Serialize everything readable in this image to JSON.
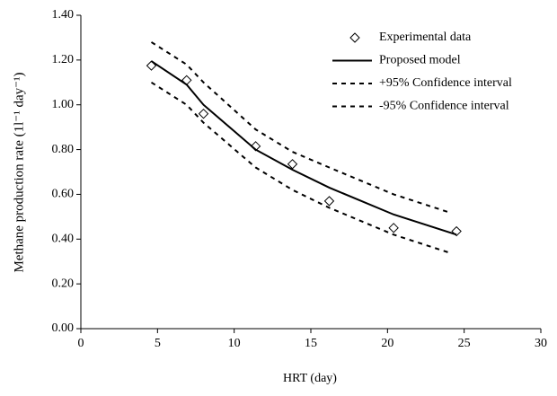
{
  "chart_data": {
    "type": "scatter-line",
    "x_label": "HRT (day)",
    "y_label": "Methane production rate (1l⁻¹ day⁻¹)",
    "xlim": [
      0,
      30
    ],
    "xticks": [
      0,
      5,
      10,
      15,
      20,
      25,
      30
    ],
    "ylim": [
      0,
      1.4
    ],
    "yticks": [
      {
        "value": 0,
        "label": "0.00"
      },
      {
        "value": 0.2,
        "label": "0.20"
      },
      {
        "value": 0.4,
        "label": "0.40"
      },
      {
        "value": 0.6,
        "label": "0.60"
      },
      {
        "value": 0.8,
        "label": "0.80"
      },
      {
        "value": 1.0,
        "label": "1.00"
      },
      {
        "value": 1.2,
        "label": "1.20"
      },
      {
        "value": 1.4,
        "label": "1.40"
      }
    ],
    "legend": "top-right",
    "series": [
      {
        "name": "Experimental data",
        "color": "#000000",
        "style": "markers",
        "x": [
          4.6,
          6.9,
          8.0,
          11.4,
          13.8,
          16.2,
          20.4,
          24.5
        ],
        "values": [
          1.175,
          1.11,
          0.96,
          0.815,
          0.735,
          0.57,
          0.45,
          0.435
        ]
      },
      {
        "name": "Proposed model",
        "color": "#000000",
        "style": "solid",
        "x": [
          4.6,
          6.9,
          8.0,
          11.4,
          13.8,
          16.2,
          20.4,
          24.5
        ],
        "values": [
          1.195,
          1.09,
          1.0,
          0.8,
          0.71,
          0.63,
          0.51,
          0.42
        ]
      },
      {
        "name": "+95% Confidence interval",
        "color": "#000000",
        "style": "dashed",
        "x": [
          4.6,
          6.9,
          8.0,
          11.4,
          13.8,
          16.2,
          20.4,
          24.0
        ],
        "values": [
          1.28,
          1.18,
          1.1,
          0.89,
          0.79,
          0.72,
          0.6,
          0.52
        ]
      },
      {
        "name": "-95% Confidence interval",
        "color": "#000000",
        "style": "dashed",
        "x": [
          4.6,
          6.9,
          8.0,
          11.4,
          13.8,
          16.2,
          20.4,
          24.0
        ],
        "values": [
          1.1,
          1.0,
          0.92,
          0.72,
          0.62,
          0.54,
          0.42,
          0.34
        ]
      }
    ]
  }
}
